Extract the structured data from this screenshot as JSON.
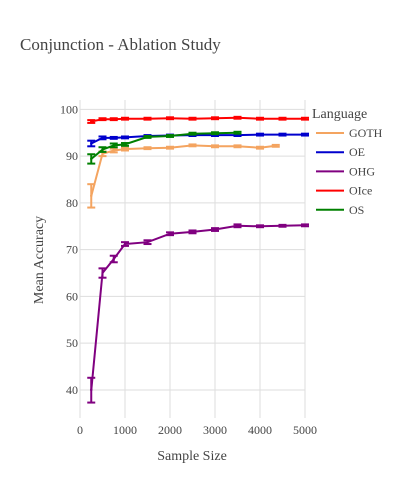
{
  "chart_data": {
    "type": "line",
    "title": "Conjunction - Ablation Study",
    "xlabel": "Sample Size",
    "ylabel": "Mean Accuracy",
    "xlim": [
      0,
      5000
    ],
    "ylim": [
      34,
      102
    ],
    "x_ticks": [
      0,
      1000,
      2000,
      3000,
      4000,
      5000
    ],
    "y_ticks": [
      40,
      50,
      60,
      70,
      80,
      90,
      100
    ],
    "grid": true,
    "legend": {
      "title": "Language",
      "placement": "right"
    },
    "series": [
      {
        "name": "GOTH",
        "color": "#f4a460",
        "points": [
          {
            "x": 250,
            "y": 81.5,
            "lo": 79,
            "hi": 84
          },
          {
            "x": 500,
            "y": 90.5,
            "lo": 90,
            "hi": 91
          },
          {
            "x": 750,
            "y": 91.2,
            "lo": 90.8,
            "hi": 91.6
          },
          {
            "x": 1000,
            "y": 91.5,
            "lo": 91.2,
            "hi": 91.8
          },
          {
            "x": 1500,
            "y": 91.7,
            "lo": 91.5,
            "hi": 91.9
          },
          {
            "x": 2000,
            "y": 91.8,
            "lo": 91.6,
            "hi": 92
          },
          {
            "x": 2500,
            "y": 92.3,
            "lo": 92.1,
            "hi": 92.5
          },
          {
            "x": 3000,
            "y": 92.1,
            "lo": 91.9,
            "hi": 92.3
          },
          {
            "x": 3500,
            "y": 92.1,
            "lo": 91.9,
            "hi": 92.3
          },
          {
            "x": 4000,
            "y": 91.8,
            "lo": 91.6,
            "hi": 92
          },
          {
            "x": 4350,
            "y": 92.2,
            "lo": 92.0,
            "hi": 92.4
          }
        ]
      },
      {
        "name": "OE",
        "color": "#0000cd",
        "points": [
          {
            "x": 250,
            "y": 92.7,
            "lo": 92.1,
            "hi": 93.3
          },
          {
            "x": 500,
            "y": 93.9,
            "lo": 93.6,
            "hi": 94.2
          },
          {
            "x": 750,
            "y": 93.9,
            "lo": 93.7,
            "hi": 94.1
          },
          {
            "x": 1000,
            "y": 94.0,
            "lo": 93.8,
            "hi": 94.2
          },
          {
            "x": 1500,
            "y": 94.3,
            "lo": 94.1,
            "hi": 94.5
          },
          {
            "x": 2000,
            "y": 94.4,
            "lo": 94.2,
            "hi": 94.6
          },
          {
            "x": 2500,
            "y": 94.5,
            "lo": 94.3,
            "hi": 94.7
          },
          {
            "x": 3000,
            "y": 94.5,
            "lo": 94.3,
            "hi": 94.7
          },
          {
            "x": 3500,
            "y": 94.5,
            "lo": 94.3,
            "hi": 94.7
          },
          {
            "x": 4000,
            "y": 94.6,
            "lo": 94.4,
            "hi": 94.8
          },
          {
            "x": 4500,
            "y": 94.6,
            "lo": 94.4,
            "hi": 94.8
          },
          {
            "x": 5000,
            "y": 94.6,
            "lo": 94.4,
            "hi": 94.8
          }
        ]
      },
      {
        "name": "OHG",
        "color": "#800080",
        "points": [
          {
            "x": 250,
            "y": 40,
            "lo": 37.3,
            "hi": 42.6
          },
          {
            "x": 500,
            "y": 65,
            "lo": 64,
            "hi": 66
          },
          {
            "x": 750,
            "y": 68,
            "lo": 67.3,
            "hi": 68.7
          },
          {
            "x": 1000,
            "y": 71.2,
            "lo": 70.8,
            "hi": 71.6
          },
          {
            "x": 1500,
            "y": 71.6,
            "lo": 71.2,
            "hi": 72
          },
          {
            "x": 2000,
            "y": 73.4,
            "lo": 73.1,
            "hi": 73.7
          },
          {
            "x": 2500,
            "y": 73.8,
            "lo": 73.5,
            "hi": 74.1
          },
          {
            "x": 3000,
            "y": 74.3,
            "lo": 74.0,
            "hi": 74.6
          },
          {
            "x": 3500,
            "y": 75.1,
            "lo": 74.8,
            "hi": 75.4
          },
          {
            "x": 4000,
            "y": 75.0,
            "lo": 74.8,
            "hi": 75.2
          },
          {
            "x": 4500,
            "y": 75.1,
            "lo": 74.9,
            "hi": 75.3
          },
          {
            "x": 5000,
            "y": 75.2,
            "lo": 75.0,
            "hi": 75.4
          }
        ]
      },
      {
        "name": "OIce",
        "color": "#ff0000",
        "points": [
          {
            "x": 250,
            "y": 97.4,
            "lo": 97.1,
            "hi": 97.7
          },
          {
            "x": 500,
            "y": 97.9,
            "lo": 97.7,
            "hi": 98.1
          },
          {
            "x": 750,
            "y": 97.9,
            "lo": 97.7,
            "hi": 98.1
          },
          {
            "x": 1000,
            "y": 98.0,
            "lo": 97.8,
            "hi": 98.2
          },
          {
            "x": 1500,
            "y": 98.0,
            "lo": 97.8,
            "hi": 98.2
          },
          {
            "x": 2000,
            "y": 98.1,
            "lo": 97.9,
            "hi": 98.3
          },
          {
            "x": 2500,
            "y": 98.0,
            "lo": 97.8,
            "hi": 98.2
          },
          {
            "x": 3000,
            "y": 98.1,
            "lo": 97.9,
            "hi": 98.3
          },
          {
            "x": 3500,
            "y": 98.2,
            "lo": 98.0,
            "hi": 98.4
          },
          {
            "x": 4000,
            "y": 98.0,
            "lo": 97.8,
            "hi": 98.2
          },
          {
            "x": 4500,
            "y": 98.0,
            "lo": 97.8,
            "hi": 98.2
          },
          {
            "x": 5000,
            "y": 98.0,
            "lo": 97.8,
            "hi": 98.2
          }
        ]
      },
      {
        "name": "OS",
        "color": "#008000",
        "points": [
          {
            "x": 250,
            "y": 89.4,
            "lo": 88.4,
            "hi": 90.4
          },
          {
            "x": 500,
            "y": 91.4,
            "lo": 90.9,
            "hi": 91.9
          },
          {
            "x": 750,
            "y": 92.3,
            "lo": 91.9,
            "hi": 92.7
          },
          {
            "x": 1000,
            "y": 92.5,
            "lo": 92.2,
            "hi": 92.8
          },
          {
            "x": 1500,
            "y": 94.1,
            "lo": 93.9,
            "hi": 94.3
          },
          {
            "x": 2000,
            "y": 94.3,
            "lo": 94.1,
            "hi": 94.5
          },
          {
            "x": 2500,
            "y": 94.8,
            "lo": 94.6,
            "hi": 95.0
          },
          {
            "x": 3000,
            "y": 94.9,
            "lo": 94.7,
            "hi": 95.1
          },
          {
            "x": 3500,
            "y": 95.0,
            "lo": 94.8,
            "hi": 95.2
          }
        ]
      }
    ]
  }
}
